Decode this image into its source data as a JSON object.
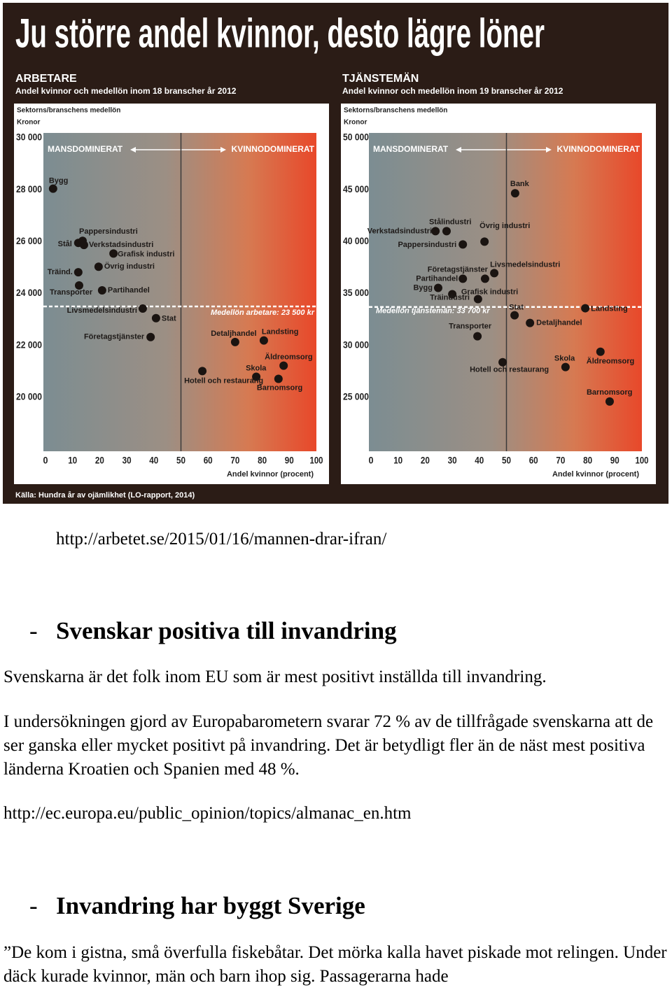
{
  "header": {
    "title": "Ju större andel kvinnor, desto lägre löner",
    "source": "Källa: Hundra år av ojämlikhet (LO-rapport, 2014)"
  },
  "chart_data": [
    {
      "type": "scatter",
      "title": "ARBETARE",
      "subtitle": "Andel kvinnor och medellön inom 18 branscher år 2012",
      "y_label": "Sektorns/branschens medellön",
      "y_unit": "Kronor",
      "left_region": "MANSDOMINERAT",
      "right_region": "KVINNODOMINERAT",
      "x_label": "Andel kvinnor (procent)",
      "xlim": [
        0,
        100
      ],
      "xticks": [
        0,
        10,
        20,
        30,
        40,
        50,
        60,
        70,
        80,
        90,
        100
      ],
      "ylim": [
        18000,
        30000
      ],
      "yticks": [
        {
          "value": 20000,
          "label": "20 000"
        },
        {
          "value": 22000,
          "label": "22 000"
        },
        {
          "value": 24000,
          "label": "24 000"
        },
        {
          "value": 26000,
          "label": "26 000"
        },
        {
          "value": 28000,
          "label": "28 000"
        },
        {
          "value": 30000,
          "label": "30 000"
        }
      ],
      "divider": 50,
      "mean_line": {
        "value": 23500,
        "label": "Medellön arbetare: 23 500 kr"
      },
      "color": "#1a1411",
      "labels": [
        "Bygg",
        "Stål",
        "Pappersindustri",
        "Verkstadsindustri",
        "Grafisk industri",
        "Övrig industri",
        "Träind.",
        "Transporter",
        "Partihandel",
        "Livsmedelsindustri",
        "Stat",
        "Företagstjänster",
        "Detaljhandel",
        "Landsting",
        "Äldreomsorg",
        "Skola",
        "Barnomsorg",
        "Hotell och restaurang"
      ],
      "x": [
        2.8,
        12.1,
        13.7,
        14.2,
        25.1,
        19.6,
        12.1,
        12.4,
        20.9,
        35.9,
        40.8,
        38.8,
        70.0,
        80.6,
        87.9,
        77.8,
        86.0,
        57.9
      ],
      "y": [
        28040,
        25950,
        26030,
        25870,
        25540,
        25030,
        24820,
        24310,
        24120,
        23420,
        23050,
        22320,
        22130,
        22190,
        21220,
        20790,
        20710,
        21010
      ]
    },
    {
      "type": "scatter",
      "title": "TJÄNSTEMÄN",
      "subtitle": "Andel kvinnor och medellön inom 19 branscher år 2012",
      "y_label": "Sektorns/branschens medellön",
      "y_unit": "Kronor",
      "left_region": "MANSDOMINERAT",
      "right_region": "KVINNODOMINERAT",
      "x_label": "Andel kvinnor (procent)",
      "xlim": [
        0,
        100
      ],
      "xticks": [
        0,
        10,
        20,
        30,
        40,
        50,
        60,
        70,
        80,
        90,
        100
      ],
      "ylim": [
        20000,
        50000
      ],
      "yticks": [
        {
          "value": 25000,
          "label": "25 000"
        },
        {
          "value": 30000,
          "label": "30 000"
        },
        {
          "value": 35000,
          "label": "35 000"
        },
        {
          "value": 40000,
          "label": "40 000"
        },
        {
          "value": 45000,
          "label": "45 000"
        },
        {
          "value": 50000,
          "label": "50 000"
        }
      ],
      "divider": 50,
      "mean_line": {
        "value": 33700,
        "label": "Medellön tjänstemän: 33 700 kr"
      },
      "color": "#1a1411",
      "labels": [
        "Bank",
        "Stålindustri",
        "Verkstadsindustri",
        "Pappersindustri",
        "Övrig industri",
        "Livsmedelsindustri",
        "Företagstjänster",
        "Partihandel",
        "Bygg",
        "Träindustri",
        "Grafisk industri",
        "Stat",
        "Landsting",
        "Detaljhandel",
        "Transporter",
        "Hotell och restaurang",
        "Skola",
        "Äldreomsorg",
        "Barnomsorg"
      ],
      "x": [
        53.2,
        27.9,
        23.8,
        33.9,
        41.9,
        45.5,
        42.1,
        33.9,
        24.8,
        30.0,
        39.5,
        53.0,
        79.1,
        58.7,
        39.3,
        48.6,
        71.8,
        84.7,
        88.1
      ],
      "y": [
        44660,
        41010,
        41010,
        39730,
        40000,
        36960,
        36420,
        36420,
        35540,
        34930,
        34460,
        32900,
        33580,
        32160,
        30880,
        28380,
        27910,
        29390,
        24590
      ]
    }
  ],
  "document": {
    "source_url": "http://arbetet.se/2015/01/16/mannen-drar-ifran/",
    "sections": [
      {
        "marker": "-",
        "heading": "Svenskar positiva till invandring",
        "paragraphs": [
          "Svenskarna är det folk inom EU som är mest positivt inställda till invandring.",
          "I undersökningen gjord av Europabarometern svarar 72 % av de tillfrågade svenskarna att de ser ganska eller mycket positivt på invandring. Det är betydligt fler än de näst mest positiva länderna Kroatien och Spanien med 48 %."
        ],
        "link": "http://ec.europa.eu/public_opinion/topics/almanac_en.htm"
      },
      {
        "marker": "-",
        "heading": "Invandring har byggt Sverige",
        "paragraphs": [
          "”De kom i gistna, små överfulla fiskebåtar. Det mörka kalla havet piskade mot relingen. Under däck kurade kvinnor, män och barn ihop sig. Passagerarna hade"
        ]
      }
    ]
  }
}
